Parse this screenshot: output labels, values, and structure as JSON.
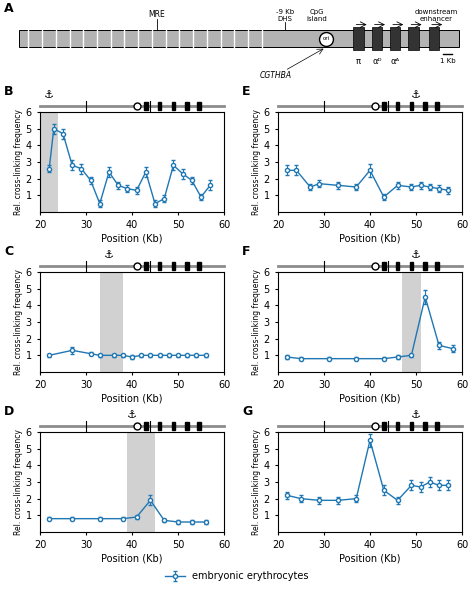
{
  "chart_data": [
    {
      "type": "genome_map",
      "title": "A",
      "annotations": [
        "MRE",
        "-9 Kb\nDHS",
        "CpG\nisland",
        "ori",
        "π",
        "αᴰ",
        "αᴬ",
        "CGTHBA",
        "downstream\nenhancer",
        "1 Kb"
      ]
    },
    {
      "type": "line",
      "title": "B",
      "x": [
        22,
        23,
        25,
        27,
        29,
        31,
        33,
        35,
        37,
        39,
        41,
        43,
        45,
        47,
        49,
        51,
        53,
        55,
        57
      ],
      "series": [
        {
          "name": "embryonic erythrocytes",
          "values": [
            2.6,
            5.0,
            4.7,
            2.8,
            2.6,
            1.9,
            0.5,
            2.4,
            1.6,
            1.4,
            1.3,
            2.4,
            0.5,
            0.8,
            2.8,
            2.3,
            1.9,
            0.9,
            1.6
          ],
          "yerr": [
            0.2,
            0.3,
            0.3,
            0.3,
            0.3,
            0.2,
            0.2,
            0.3,
            0.2,
            0.2,
            0.2,
            0.3,
            0.2,
            0.2,
            0.3,
            0.3,
            0.2,
            0.2,
            0.3
          ]
        }
      ],
      "xlabel": "Position (Kb)",
      "ylabel": "Rel. cross-linking frequency",
      "xlim": [
        20,
        60
      ],
      "ylim": [
        0,
        6
      ],
      "xticks": [
        20,
        30,
        40,
        50,
        60
      ],
      "yticks": [
        1,
        2,
        3,
        4,
        5,
        6
      ],
      "highlight": [
        20,
        24
      ],
      "track": {
        "genes": [
          43,
          46,
          49,
          52,
          54.5
        ],
        "circle": 41,
        "marks": [
          30,
          44
        ]
      },
      "annotations": [
        {
          "text": "⚓",
          "x": 22
        }
      ],
      "legend": "lower center"
    },
    {
      "type": "line",
      "title": "C",
      "x": [
        22,
        27,
        31,
        33,
        36,
        38,
        40,
        42,
        44,
        46,
        48,
        50,
        52,
        54,
        56
      ],
      "series": [
        {
          "name": "embryonic erythrocytes",
          "values": [
            1.0,
            1.3,
            1.1,
            1.0,
            1.0,
            1.0,
            0.9,
            1.0,
            1.0,
            1.0,
            1.0,
            1.0,
            1.0,
            1.0,
            1.0
          ],
          "yerr": [
            0.1,
            0.2,
            0.1,
            0.1,
            0.1,
            0.1,
            0.1,
            0.1,
            0.1,
            0.1,
            0.1,
            0.1,
            0.1,
            0.1,
            0.1
          ]
        }
      ],
      "xlabel": "Position (Kb)",
      "ylabel": "Rel. cross-linking frequency",
      "xlim": [
        20,
        60
      ],
      "ylim": [
        0,
        6
      ],
      "xticks": [
        20,
        30,
        40,
        50,
        60
      ],
      "yticks": [
        1,
        2,
        3,
        4,
        5,
        6
      ],
      "highlight": [
        33,
        38
      ],
      "track": {
        "genes": [
          43,
          46,
          49,
          52,
          54.5
        ],
        "circle": 41,
        "marks": [
          30,
          44
        ]
      },
      "annotations": [
        {
          "text": "⚓",
          "x": 35
        }
      ],
      "legend": "lower center"
    },
    {
      "type": "line",
      "title": "D",
      "x": [
        22,
        27,
        33,
        38,
        41,
        44,
        47,
        50,
        53,
        56
      ],
      "series": [
        {
          "name": "embryonic erythrocytes",
          "values": [
            0.8,
            0.8,
            0.8,
            0.8,
            0.9,
            1.9,
            0.7,
            0.6,
            0.6,
            0.6
          ],
          "yerr": [
            0.1,
            0.1,
            0.1,
            0.1,
            0.1,
            0.3,
            0.1,
            0.1,
            0.1,
            0.1
          ]
        }
      ],
      "xlabel": "Position (Kb)",
      "ylabel": "Rel. cross-linking frequency",
      "xlim": [
        20,
        60
      ],
      "ylim": [
        0,
        6
      ],
      "xticks": [
        20,
        30,
        40,
        50,
        60
      ],
      "yticks": [
        1,
        2,
        3,
        4,
        5,
        6
      ],
      "highlight": [
        39,
        45
      ],
      "track": {
        "genes": [
          43,
          46,
          49,
          52,
          54.5
        ],
        "circle": 41,
        "marks": [
          30,
          44
        ]
      },
      "annotations": [
        {
          "text": "⚓",
          "x": 40
        }
      ],
      "legend": "lower center"
    },
    {
      "type": "line",
      "title": "E",
      "x": [
        22,
        24,
        27,
        29,
        33,
        37,
        40,
        43,
        46,
        49,
        51,
        53,
        55,
        57
      ],
      "series": [
        {
          "name": "embryonic erythrocytes",
          "values": [
            2.5,
            2.5,
            1.5,
            1.7,
            1.6,
            1.5,
            2.5,
            0.9,
            1.6,
            1.5,
            1.6,
            1.5,
            1.4,
            1.3
          ],
          "yerr": [
            0.3,
            0.3,
            0.2,
            0.2,
            0.2,
            0.2,
            0.4,
            0.2,
            0.2,
            0.2,
            0.2,
            0.2,
            0.2,
            0.2
          ]
        }
      ],
      "xlabel": "Position (Kb)",
      "ylabel": "Rel. cross-linking frequency",
      "xlim": [
        20,
        60
      ],
      "ylim": [
        0,
        6
      ],
      "xticks": [
        20,
        30,
        40,
        50,
        60
      ],
      "yticks": [
        1,
        2,
        3,
        4,
        5,
        6
      ],
      "track": {
        "genes": [
          43,
          46,
          49,
          52,
          54.5
        ],
        "circle": 41,
        "marks": [
          30,
          44
        ]
      },
      "annotations": [
        {
          "text": "⚓",
          "x": 50
        }
      ],
      "legend": "lower center"
    },
    {
      "type": "line",
      "title": "F",
      "x": [
        22,
        25,
        31,
        37,
        43,
        46,
        49,
        52,
        55,
        58
      ],
      "series": [
        {
          "name": "embryonic erythrocytes",
          "values": [
            0.9,
            0.8,
            0.8,
            0.8,
            0.8,
            0.9,
            1.0,
            4.5,
            1.6,
            1.4
          ],
          "yerr": [
            0.1,
            0.1,
            0.1,
            0.1,
            0.1,
            0.1,
            0.1,
            0.4,
            0.2,
            0.2
          ]
        }
      ],
      "xlabel": "Position (Kb)",
      "ylabel": "Rel. cross-linking frequency",
      "xlim": [
        20,
        60
      ],
      "ylim": [
        0,
        6
      ],
      "xticks": [
        20,
        30,
        40,
        50,
        60
      ],
      "yticks": [
        1,
        2,
        3,
        4,
        5,
        6
      ],
      "highlight": [
        47,
        51
      ],
      "track": {
        "genes": [
          43,
          46,
          49,
          52,
          54.5
        ],
        "circle": 41,
        "marks": [
          30,
          44
        ]
      },
      "annotations": [
        {
          "text": "⚓",
          "x": 50
        }
      ],
      "legend": "lower center"
    },
    {
      "type": "line",
      "title": "G",
      "x": [
        22,
        25,
        29,
        33,
        37,
        40,
        43,
        46,
        49,
        51,
        53,
        55,
        57
      ],
      "series": [
        {
          "name": "embryonic erythrocytes",
          "values": [
            2.2,
            2.0,
            1.9,
            1.9,
            2.0,
            5.5,
            2.5,
            1.9,
            2.8,
            2.7,
            3.0,
            2.8,
            2.8
          ],
          "yerr": [
            0.2,
            0.2,
            0.2,
            0.2,
            0.2,
            0.4,
            0.3,
            0.2,
            0.3,
            0.3,
            0.3,
            0.3,
            0.3
          ]
        }
      ],
      "xlabel": "Position (Kb)",
      "ylabel": "Rel. cross-linking frequency",
      "xlim": [
        20,
        60
      ],
      "ylim": [
        0,
        6
      ],
      "xticks": [
        20,
        30,
        40,
        50,
        60
      ],
      "yticks": [
        1,
        2,
        3,
        4,
        5,
        6
      ],
      "track": {
        "genes": [
          43,
          46,
          49,
          52,
          54.5
        ],
        "circle": 41,
        "marks": [
          30,
          44
        ]
      },
      "annotations": [
        {
          "text": "⚓",
          "x": 50
        }
      ],
      "legend": "lower center"
    }
  ]
}
